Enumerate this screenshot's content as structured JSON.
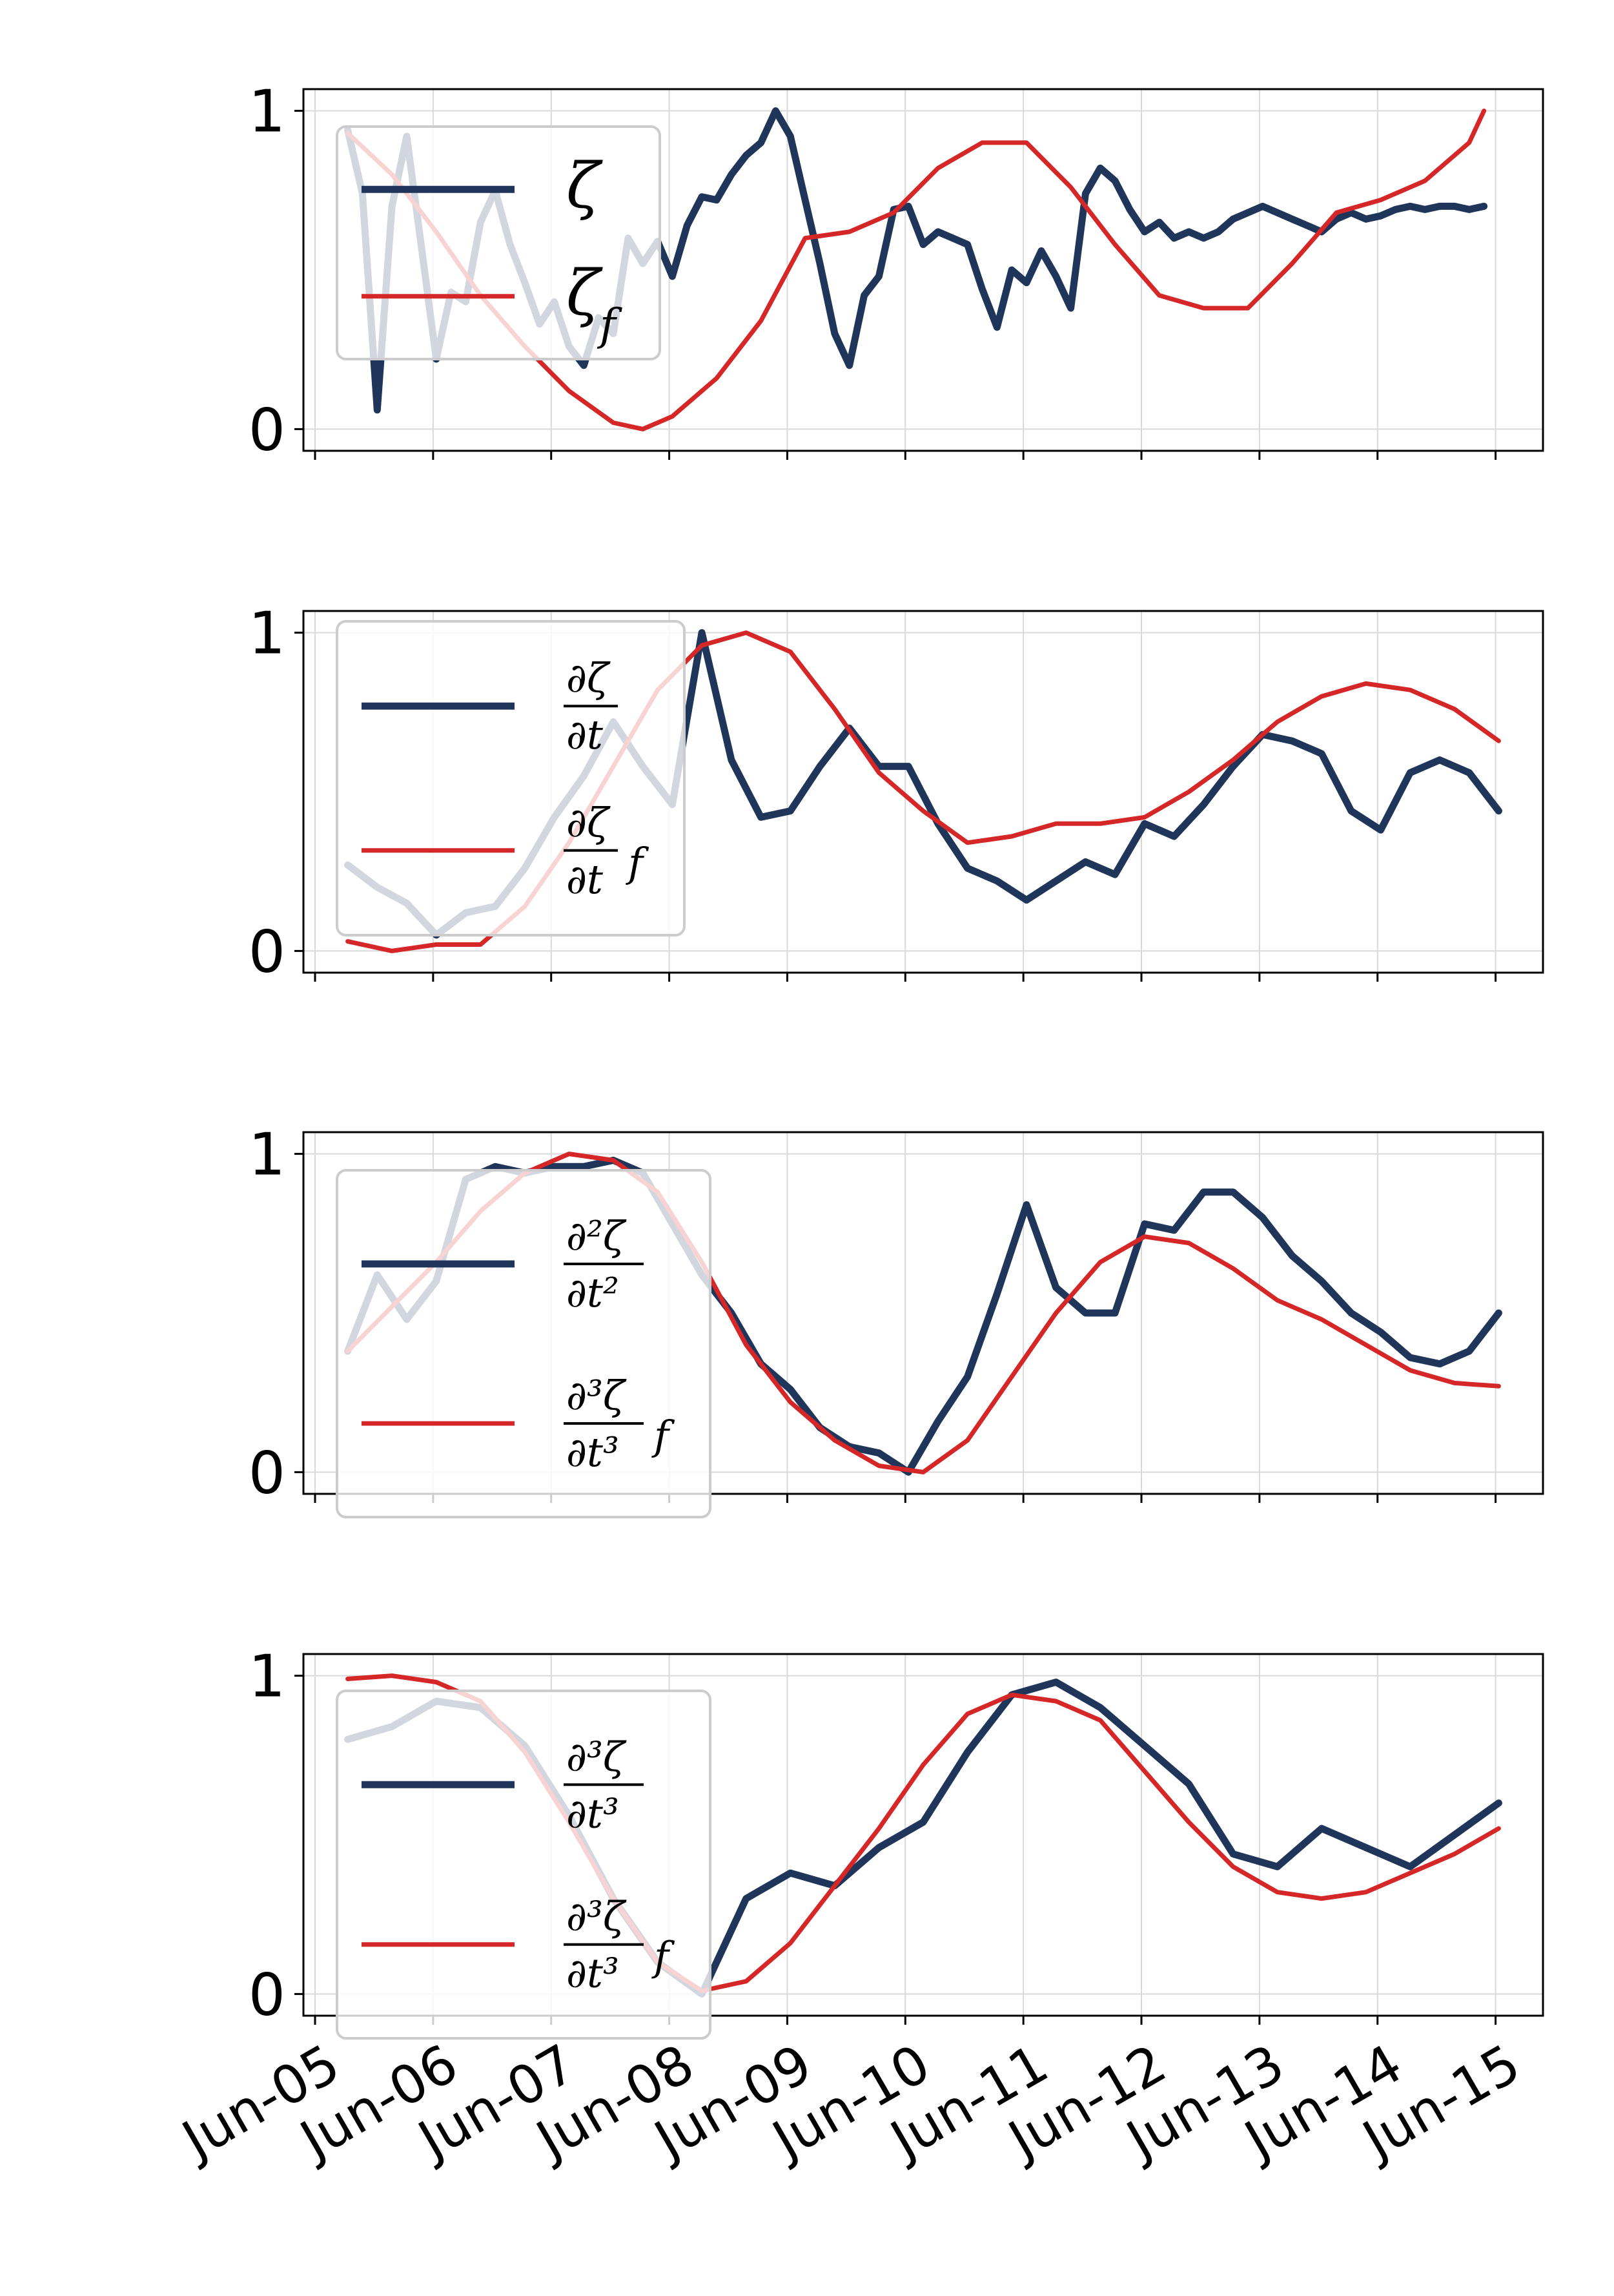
{
  "colors": {
    "series_navy": "#1f3559",
    "series_red": "#d62728",
    "grid": "#d9d9d9",
    "legend_frame": "#cccccc"
  },
  "x_dates": [
    "Jun-05",
    "Jun-06",
    "Jun-07",
    "Jun-08",
    "Jun-09",
    "Jun-10",
    "Jun-11",
    "Jun-12",
    "Jun-13",
    "Jun-14",
    "Jun-15"
  ],
  "y_tick_labels": [
    "0",
    "1"
  ],
  "chart_data": [
    {
      "type": "line",
      "grid": true,
      "legend_placement": "upper-left",
      "xlim": [
        "2024-06-05",
        "2024-06-15T12:00"
      ],
      "ylim": [
        0,
        1
      ],
      "series": [
        {
          "name": "ζ",
          "legend_html": "ζ",
          "color": "#1f3559",
          "x": [
            "2024-06-05T09:00",
            "2024-06-05T12:00",
            "2024-06-05T15:00",
            "2024-06-05T18:00",
            "2024-06-05T21:00",
            "2024-06-06T00:00",
            "2024-06-06T03:00",
            "2024-06-06T06:00",
            "2024-06-06T09:00",
            "2024-06-06T12:00",
            "2024-06-06T15:00",
            "2024-06-06T18:00",
            "2024-06-06T21:00",
            "2024-06-07T00:00",
            "2024-06-07T03:00",
            "2024-06-07T06:00",
            "2024-06-07T09:00",
            "2024-06-07T12:00",
            "2024-06-07T15:00",
            "2024-06-07T18:00",
            "2024-06-07T21:00",
            "2024-06-08T00:00",
            "2024-06-08T03:00",
            "2024-06-08T06:00",
            "2024-06-08T09:00",
            "2024-06-08T12:00",
            "2024-06-08T15:00",
            "2024-06-08T18:00",
            "2024-06-08T21:00",
            "2024-06-09T00:00",
            "2024-06-09T03:00",
            "2024-06-09T06:00",
            "2024-06-09T09:00",
            "2024-06-09T12:00",
            "2024-06-09T15:00",
            "2024-06-09T18:00",
            "2024-06-09T21:00",
            "2024-06-10T00:00",
            "2024-06-10T03:00",
            "2024-06-10T06:00",
            "2024-06-10T09:00",
            "2024-06-10T12:00",
            "2024-06-10T15:00",
            "2024-06-10T18:00",
            "2024-06-10T21:00",
            "2024-06-11T00:00",
            "2024-06-11T03:00",
            "2024-06-11T06:00",
            "2024-06-11T09:00",
            "2024-06-11T12:00",
            "2024-06-11T15:00",
            "2024-06-11T18:00",
            "2024-06-11T21:00",
            "2024-06-12T00:00",
            "2024-06-12T03:00",
            "2024-06-12T06:00",
            "2024-06-12T09:00",
            "2024-06-12T12:00",
            "2024-06-12T15:00",
            "2024-06-12T18:00",
            "2024-06-12T21:00",
            "2024-06-13T00:00",
            "2024-06-13T03:00",
            "2024-06-13T06:00",
            "2024-06-13T09:00",
            "2024-06-13T12:00",
            "2024-06-13T15:00",
            "2024-06-13T18:00",
            "2024-06-13T21:00",
            "2024-06-14T00:00",
            "2024-06-14T03:00",
            "2024-06-14T06:00",
            "2024-06-14T09:00",
            "2024-06-14T12:00",
            "2024-06-14T15:00",
            "2024-06-14T18:00",
            "2024-06-14T21:00",
            "2024-06-15T00:00"
          ],
          "y": [
            0.94,
            0.74,
            0.06,
            0.7,
            0.92,
            0.57,
            0.22,
            0.43,
            0.4,
            0.65,
            0.75,
            0.58,
            0.46,
            0.33,
            0.4,
            0.26,
            0.2,
            0.35,
            0.3,
            0.6,
            0.52,
            0.59,
            0.48,
            0.64,
            0.73,
            0.72,
            0.8,
            0.86,
            0.9,
            1.0,
            0.92,
            0.72,
            0.52,
            0.3,
            0.2,
            0.42,
            0.48,
            0.69,
            0.7,
            0.58,
            0.62,
            0.6,
            0.58,
            0.44,
            0.32,
            0.5,
            0.46,
            0.56,
            0.48,
            0.38,
            0.74,
            0.82,
            0.78,
            0.69,
            0.62,
            0.65,
            0.6,
            0.62,
            0.6,
            0.62,
            0.66,
            0.68,
            0.7,
            0.68,
            0.66,
            0.64,
            0.62,
            0.66,
            0.68,
            0.66,
            0.67,
            0.69,
            0.7,
            0.69,
            0.7,
            0.7,
            0.69,
            0.7
          ]
        },
        {
          "name": "ζ_f",
          "legend_html": "ζ<tspan baseline-shift=\"sub\" font-size=\"70%\">f</tspan>",
          "color": "#d62728",
          "x": [
            "2024-06-05T09:00",
            "2024-06-05T18:00",
            "2024-06-06T03:00",
            "2024-06-06T12:00",
            "2024-06-06T21:00",
            "2024-06-07T06:00",
            "2024-06-07T15:00",
            "2024-06-07T21:00",
            "2024-06-08T03:00",
            "2024-06-08T12:00",
            "2024-06-08T21:00",
            "2024-06-09T06:00",
            "2024-06-09T15:00",
            "2024-06-10T00:00",
            "2024-06-10T09:00",
            "2024-06-10T18:00",
            "2024-06-11T03:00",
            "2024-06-11T12:00",
            "2024-06-11T21:00",
            "2024-06-12T06:00",
            "2024-06-12T15:00",
            "2024-06-13T00:00",
            "2024-06-13T09:00",
            "2024-06-13T18:00",
            "2024-06-14T03:00",
            "2024-06-14T12:00",
            "2024-06-14T21:00",
            "2024-06-15T00:00"
          ],
          "y": [
            0.93,
            0.8,
            0.62,
            0.42,
            0.26,
            0.12,
            0.02,
            0.0,
            0.04,
            0.16,
            0.34,
            0.6,
            0.62,
            0.68,
            0.82,
            0.9,
            0.9,
            0.76,
            0.58,
            0.42,
            0.38,
            0.38,
            0.52,
            0.68,
            0.72,
            0.78,
            0.9,
            1.0
          ]
        }
      ]
    },
    {
      "type": "line",
      "grid": true,
      "legend_placement": "upper-left",
      "xlim": [
        "2024-06-05",
        "2024-06-15T12:00"
      ],
      "ylim": [
        0,
        1
      ],
      "series": [
        {
          "name": "∂ζ/∂t",
          "legend_frac": {
            "num": "∂ζ",
            "den": "∂t",
            "suffix": ""
          },
          "color": "#1f3559",
          "x": [
            "2024-06-05T09:00",
            "2024-06-05T15:00",
            "2024-06-05T21:00",
            "2024-06-06T03:00",
            "2024-06-06T09:00",
            "2024-06-06T15:00",
            "2024-06-06T21:00",
            "2024-06-07T03:00",
            "2024-06-07T09:00",
            "2024-06-07T15:00",
            "2024-06-07T21:00",
            "2024-06-08T03:00",
            "2024-06-08T09:00",
            "2024-06-08T15:00",
            "2024-06-08T21:00",
            "2024-06-09T03:00",
            "2024-06-09T09:00",
            "2024-06-09T15:00",
            "2024-06-09T21:00",
            "2024-06-10T03:00",
            "2024-06-10T09:00",
            "2024-06-10T15:00",
            "2024-06-10T21:00",
            "2024-06-11T03:00",
            "2024-06-11T09:00",
            "2024-06-11T15:00",
            "2024-06-11T21:00",
            "2024-06-12T03:00",
            "2024-06-12T09:00",
            "2024-06-12T15:00",
            "2024-06-12T21:00",
            "2024-06-13T03:00",
            "2024-06-13T09:00",
            "2024-06-13T15:00",
            "2024-06-13T21:00",
            "2024-06-14T03:00",
            "2024-06-14T09:00",
            "2024-06-14T15:00",
            "2024-06-14T21:00",
            "2024-06-15T03:00"
          ],
          "y": [
            0.27,
            0.2,
            0.15,
            0.05,
            0.12,
            0.14,
            0.26,
            0.42,
            0.55,
            0.72,
            0.58,
            0.46,
            1.0,
            0.6,
            0.42,
            0.44,
            0.58,
            0.7,
            0.58,
            0.58,
            0.4,
            0.26,
            0.22,
            0.16,
            0.22,
            0.28,
            0.24,
            0.4,
            0.36,
            0.46,
            0.58,
            0.68,
            0.66,
            0.62,
            0.44,
            0.38,
            0.56,
            0.6,
            0.56,
            0.44
          ]
        },
        {
          "name": "∂ζ/∂t f",
          "legend_frac": {
            "num": "∂ζ",
            "den": "∂t",
            "suffix": "f"
          },
          "color": "#d62728",
          "x": [
            "2024-06-05T09:00",
            "2024-06-05T18:00",
            "2024-06-06T03:00",
            "2024-06-06T12:00",
            "2024-06-06T21:00",
            "2024-06-07T06:00",
            "2024-06-07T15:00",
            "2024-06-08T00:00",
            "2024-06-08T09:00",
            "2024-06-08T18:00",
            "2024-06-09T03:00",
            "2024-06-09T12:00",
            "2024-06-09T21:00",
            "2024-06-10T06:00",
            "2024-06-10T15:00",
            "2024-06-11T00:00",
            "2024-06-11T09:00",
            "2024-06-11T18:00",
            "2024-06-12T03:00",
            "2024-06-12T12:00",
            "2024-06-12T21:00",
            "2024-06-13T06:00",
            "2024-06-13T15:00",
            "2024-06-14T00:00",
            "2024-06-14T09:00",
            "2024-06-14T18:00",
            "2024-06-15T03:00"
          ],
          "y": [
            0.03,
            0.0,
            0.02,
            0.02,
            0.14,
            0.34,
            0.58,
            0.82,
            0.96,
            1.0,
            0.94,
            0.76,
            0.56,
            0.44,
            0.34,
            0.36,
            0.4,
            0.4,
            0.42,
            0.5,
            0.6,
            0.72,
            0.8,
            0.84,
            0.82,
            0.76,
            0.66
          ]
        }
      ]
    },
    {
      "type": "line",
      "grid": true,
      "legend_placement": "upper-left",
      "xlim": [
        "2024-06-05",
        "2024-06-15T12:00"
      ],
      "ylim": [
        0,
        1
      ],
      "series": [
        {
          "name": "∂²ζ/∂t²",
          "legend_frac": {
            "num": "∂²ζ",
            "den": "∂t²",
            "suffix": ""
          },
          "color": "#1f3559",
          "x": [
            "2024-06-05T09:00",
            "2024-06-05T15:00",
            "2024-06-05T21:00",
            "2024-06-06T03:00",
            "2024-06-06T09:00",
            "2024-06-06T15:00",
            "2024-06-06T21:00",
            "2024-06-07T03:00",
            "2024-06-07T09:00",
            "2024-06-07T15:00",
            "2024-06-07T21:00",
            "2024-06-08T03:00",
            "2024-06-08T09:00",
            "2024-06-08T15:00",
            "2024-06-08T21:00",
            "2024-06-09T03:00",
            "2024-06-09T09:00",
            "2024-06-09T15:00",
            "2024-06-09T21:00",
            "2024-06-10T03:00",
            "2024-06-10T09:00",
            "2024-06-10T15:00",
            "2024-06-10T21:00",
            "2024-06-11T03:00",
            "2024-06-11T09:00",
            "2024-06-11T15:00",
            "2024-06-11T21:00",
            "2024-06-12T03:00",
            "2024-06-12T09:00",
            "2024-06-12T15:00",
            "2024-06-12T21:00",
            "2024-06-13T03:00",
            "2024-06-13T09:00",
            "2024-06-13T15:00",
            "2024-06-13T21:00",
            "2024-06-14T03:00",
            "2024-06-14T09:00",
            "2024-06-14T15:00",
            "2024-06-14T21:00",
            "2024-06-15T03:00"
          ],
          "y": [
            0.38,
            0.62,
            0.48,
            0.6,
            0.92,
            0.96,
            0.94,
            0.96,
            0.96,
            0.98,
            0.94,
            0.78,
            0.62,
            0.5,
            0.34,
            0.26,
            0.14,
            0.08,
            0.06,
            0.0,
            0.16,
            0.3,
            0.56,
            0.84,
            0.58,
            0.5,
            0.5,
            0.78,
            0.76,
            0.88,
            0.88,
            0.8,
            0.68,
            0.6,
            0.5,
            0.44,
            0.36,
            0.34,
            0.38,
            0.5
          ]
        },
        {
          "name": "∂³ζ/∂t³ f",
          "legend_frac": {
            "num": "∂³ζ",
            "den": "∂t³",
            "suffix": "f"
          },
          "color": "#d62728",
          "x": [
            "2024-06-05T09:00",
            "2024-06-05T18:00",
            "2024-06-06T03:00",
            "2024-06-06T12:00",
            "2024-06-06T21:00",
            "2024-06-07T06:00",
            "2024-06-07T15:00",
            "2024-06-08T00:00",
            "2024-06-08T09:00",
            "2024-06-08T18:00",
            "2024-06-09T03:00",
            "2024-06-09T12:00",
            "2024-06-09T21:00",
            "2024-06-10T06:00",
            "2024-06-10T15:00",
            "2024-06-11T00:00",
            "2024-06-11T09:00",
            "2024-06-11T18:00",
            "2024-06-12T03:00",
            "2024-06-12T12:00",
            "2024-06-12T21:00",
            "2024-06-13T06:00",
            "2024-06-13T15:00",
            "2024-06-14T00:00",
            "2024-06-14T09:00",
            "2024-06-14T18:00",
            "2024-06-15T03:00"
          ],
          "y": [
            0.38,
            0.52,
            0.66,
            0.82,
            0.94,
            1.0,
            0.98,
            0.88,
            0.66,
            0.4,
            0.22,
            0.1,
            0.02,
            0.0,
            0.1,
            0.3,
            0.5,
            0.66,
            0.74,
            0.72,
            0.64,
            0.54,
            0.48,
            0.4,
            0.32,
            0.28,
            0.27
          ]
        }
      ]
    },
    {
      "type": "line",
      "grid": true,
      "legend_placement": "upper-left",
      "xlim": [
        "2024-06-05",
        "2024-06-15T12:00"
      ],
      "ylim": [
        0,
        1
      ],
      "series": [
        {
          "name": "∂³ζ/∂t³",
          "legend_frac": {
            "num": "∂³ζ",
            "den": "∂t³",
            "suffix": ""
          },
          "color": "#1f3559",
          "x": [
            "2024-06-05T09:00",
            "2024-06-05T18:00",
            "2024-06-06T03:00",
            "2024-06-06T12:00",
            "2024-06-06T21:00",
            "2024-06-07T06:00",
            "2024-06-07T15:00",
            "2024-06-08T00:00",
            "2024-06-08T09:00",
            "2024-06-08T18:00",
            "2024-06-09T03:00",
            "2024-06-09T12:00",
            "2024-06-09T21:00",
            "2024-06-10T06:00",
            "2024-06-10T15:00",
            "2024-06-11T00:00",
            "2024-06-11T09:00",
            "2024-06-11T18:00",
            "2024-06-12T03:00",
            "2024-06-12T12:00",
            "2024-06-12T21:00",
            "2024-06-13T06:00",
            "2024-06-13T15:00",
            "2024-06-14T00:00",
            "2024-06-14T09:00",
            "2024-06-14T18:00",
            "2024-06-15T03:00"
          ],
          "y": [
            0.8,
            0.84,
            0.92,
            0.9,
            0.78,
            0.56,
            0.3,
            0.1,
            0.0,
            0.3,
            0.38,
            0.34,
            0.46,
            0.54,
            0.76,
            0.94,
            0.98,
            0.9,
            0.78,
            0.66,
            0.44,
            0.4,
            0.52,
            0.46,
            0.4,
            0.5,
            0.6
          ]
        },
        {
          "name": "∂³ζ/∂t³ f",
          "legend_frac": {
            "num": "∂³ζ",
            "den": "∂t³",
            "suffix": "f"
          },
          "color": "#d62728",
          "x": [
            "2024-06-05T09:00",
            "2024-06-05T18:00",
            "2024-06-06T03:00",
            "2024-06-06T12:00",
            "2024-06-06T21:00",
            "2024-06-07T06:00",
            "2024-06-07T15:00",
            "2024-06-08T00:00",
            "2024-06-08T09:00",
            "2024-06-08T18:00",
            "2024-06-09T03:00",
            "2024-06-09T12:00",
            "2024-06-09T21:00",
            "2024-06-10T06:00",
            "2024-06-10T15:00",
            "2024-06-11T00:00",
            "2024-06-11T09:00",
            "2024-06-11T18:00",
            "2024-06-12T03:00",
            "2024-06-12T12:00",
            "2024-06-12T21:00",
            "2024-06-13T06:00",
            "2024-06-13T15:00",
            "2024-06-14T00:00",
            "2024-06-14T09:00",
            "2024-06-14T18:00",
            "2024-06-15T03:00"
          ],
          "y": [
            0.99,
            1.0,
            0.98,
            0.92,
            0.76,
            0.54,
            0.3,
            0.1,
            0.01,
            0.04,
            0.16,
            0.34,
            0.52,
            0.72,
            0.88,
            0.94,
            0.92,
            0.86,
            0.7,
            0.54,
            0.4,
            0.32,
            0.3,
            0.32,
            0.38,
            0.44,
            0.52
          ]
        }
      ]
    }
  ]
}
